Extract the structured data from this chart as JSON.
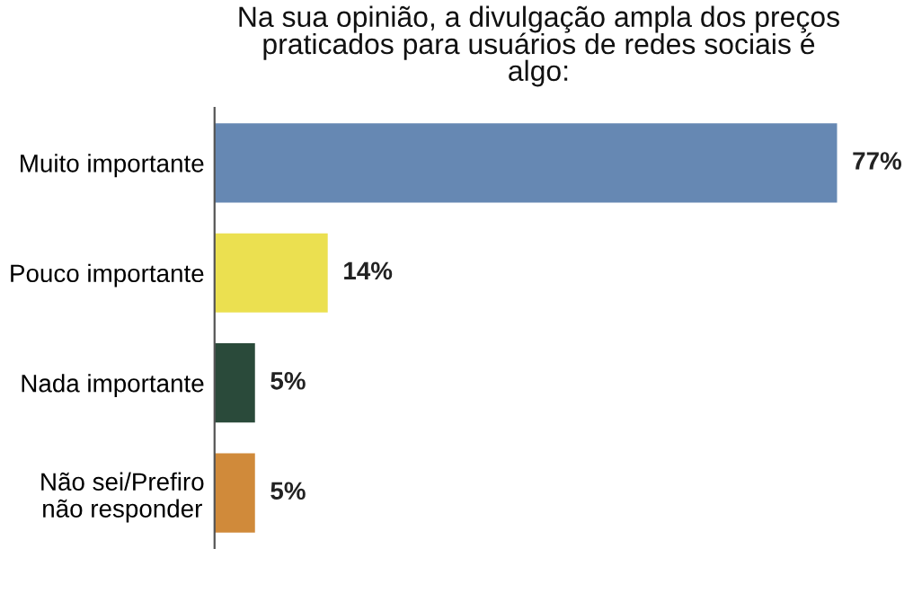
{
  "chart_data": {
    "type": "bar",
    "orientation": "horizontal",
    "title": "Na sua opinião, a divulgação ampla dos preços\npraticados para usuários de redes sociais é\nalgo:",
    "categories": [
      "Muito importante",
      "Pouco importante",
      "Nada importante",
      "Não sei/Prefiro\nnão responder"
    ],
    "values": [
      77,
      14,
      5,
      5
    ],
    "colors": [
      "#6688b3",
      "#ebe050",
      "#2a4a3a",
      "#d08a3a"
    ],
    "value_labels": [
      "77%",
      "14%",
      "5%",
      "5%"
    ],
    "tick_labels": "y",
    "grid": false,
    "legend": false
  }
}
